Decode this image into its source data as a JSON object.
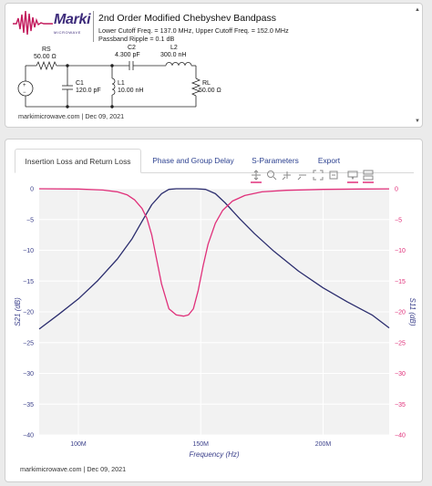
{
  "header": {
    "logo_text": "Marki",
    "logo_subtext": "MICROWAVE",
    "title": "2nd Order Modified Chebyshev Bandpass",
    "subtitle_line1": "Lower Cutoff Freq. = 137.0 MHz, Upper Cutoff Freq. = 152.0 MHz",
    "subtitle_line2": "Passband Ripple = 0.1 dB"
  },
  "schematic": {
    "rs": {
      "name": "RS",
      "value": "50.00 Ω"
    },
    "c1": {
      "name": "C1",
      "value": "120.0 pF"
    },
    "l1": {
      "name": "L1",
      "value": "10.00 nH"
    },
    "c2": {
      "name": "C2",
      "value": "4.300 pF"
    },
    "l2": {
      "name": "L2",
      "value": "300.0 nH"
    },
    "rl": {
      "name": "RL",
      "value": "50.00 Ω"
    }
  },
  "top_footer": "markimicrowave.com | Dec 09, 2021",
  "tabs": [
    {
      "label": "Insertion Loss and Return Loss",
      "active": true
    },
    {
      "label": "Phase and Group Delay",
      "active": false
    },
    {
      "label": "S-Parameters",
      "active": false
    },
    {
      "label": "Export",
      "active": false
    }
  ],
  "toolbar_icons": [
    "pan-icon",
    "zoom-icon",
    "zoom-in-icon",
    "zoom-out-icon",
    "autoscale-icon",
    "reset-axes-icon",
    "hover-closest-icon",
    "hover-compare-icon"
  ],
  "colors": {
    "s21": "#2b2d6e",
    "s11": "#e0307a",
    "brand": "#3c2a7a",
    "logo_wave": "#c2185b"
  },
  "chart_data": {
    "type": "line",
    "xlabel": "Frequency (Hz)",
    "ylabel": "S21 (dB)",
    "y2label": "S11 (dB)",
    "xlim": [
      84000000,
      227000000
    ],
    "ylim": [
      -40,
      0
    ],
    "y2lim": [
      -40,
      0
    ],
    "x_ticks": [
      {
        "value": 100000000,
        "label": "100M"
      },
      {
        "value": 150000000,
        "label": "150M"
      },
      {
        "value": 200000000,
        "label": "200M"
      }
    ],
    "y_ticks": [
      0,
      -5,
      -10,
      -15,
      -20,
      -25,
      -30,
      -35,
      -40
    ],
    "y_tick_labels": [
      "0",
      "−5",
      "−10",
      "−15",
      "−20",
      "−25",
      "−30",
      "−35",
      "−40"
    ],
    "grid": true,
    "series": [
      {
        "name": "S21",
        "axis": "left",
        "x": [
          84000000,
          92000000,
          100000000,
          108000000,
          116000000,
          122000000,
          126000000,
          130000000,
          134000000,
          137000000,
          140000000,
          144000000,
          148000000,
          152000000,
          156000000,
          160000000,
          166000000,
          172000000,
          180000000,
          190000000,
          200000000,
          210000000,
          220000000,
          227000000
        ],
        "y": [
          -22.8,
          -20.4,
          -17.9,
          -14.9,
          -11.4,
          -8.1,
          -5.3,
          -2.6,
          -0.8,
          -0.1,
          0,
          0,
          0,
          -0.1,
          -0.8,
          -2.3,
          -4.9,
          -7.3,
          -10.2,
          -13.4,
          -16.1,
          -18.4,
          -20.5,
          -22.6
        ]
      },
      {
        "name": "S11",
        "axis": "right",
        "x": [
          84000000,
          100000000,
          110000000,
          116000000,
          120000000,
          123000000,
          126000000,
          128000000,
          130000000,
          132000000,
          134000000,
          137000000,
          140000000,
          143000000,
          145000000,
          147000000,
          149000000,
          151000000,
          153000000,
          156000000,
          159000000,
          163000000,
          168000000,
          175000000,
          185000000,
          200000000,
          215000000,
          227000000
        ],
        "y": [
          0,
          -0.05,
          -0.2,
          -0.5,
          -1.0,
          -1.8,
          -3.2,
          -4.8,
          -7.5,
          -11.5,
          -15.5,
          -19.5,
          -20.5,
          -20.7,
          -20.5,
          -19.5,
          -16.5,
          -12.5,
          -9.0,
          -5.6,
          -3.5,
          -2.0,
          -1.1,
          -0.5,
          -0.25,
          -0.1,
          -0.04,
          -0.02
        ]
      }
    ]
  },
  "chart_footer": "markimicrowave.com | Dec 09, 2021"
}
